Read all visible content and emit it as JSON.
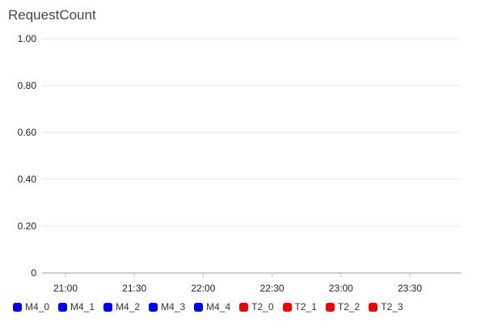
{
  "chart_data": {
    "type": "line",
    "title": "RequestCount",
    "xlabel": "",
    "ylabel": "",
    "x_tick_labels": [
      "21:00",
      "21:30",
      "22:00",
      "22:30",
      "23:00",
      "23:30"
    ],
    "y_ticks": [
      0,
      0.2,
      0.4,
      0.6,
      0.8,
      1.0
    ],
    "y_tick_labels": [
      "0",
      "0.20",
      "0.40",
      "0.60",
      "0.80",
      "1.00"
    ],
    "ylim": [
      0,
      1
    ],
    "grid": true,
    "legend_position": "bottom-left",
    "series": [
      {
        "name": "M4_0",
        "color": "#0000ee",
        "values": []
      },
      {
        "name": "M4_1",
        "color": "#0000ee",
        "values": []
      },
      {
        "name": "M4_2",
        "color": "#0000ee",
        "values": []
      },
      {
        "name": "M4_3",
        "color": "#0000ee",
        "values": []
      },
      {
        "name": "M4_4",
        "color": "#0000ee",
        "values": []
      },
      {
        "name": "T2_0",
        "color": "#ee0000",
        "values": []
      },
      {
        "name": "T2_1",
        "color": "#ee0000",
        "values": []
      },
      {
        "name": "T2_2",
        "color": "#ee0000",
        "values": []
      },
      {
        "name": "T2_3",
        "color": "#ee0000",
        "values": []
      }
    ]
  }
}
